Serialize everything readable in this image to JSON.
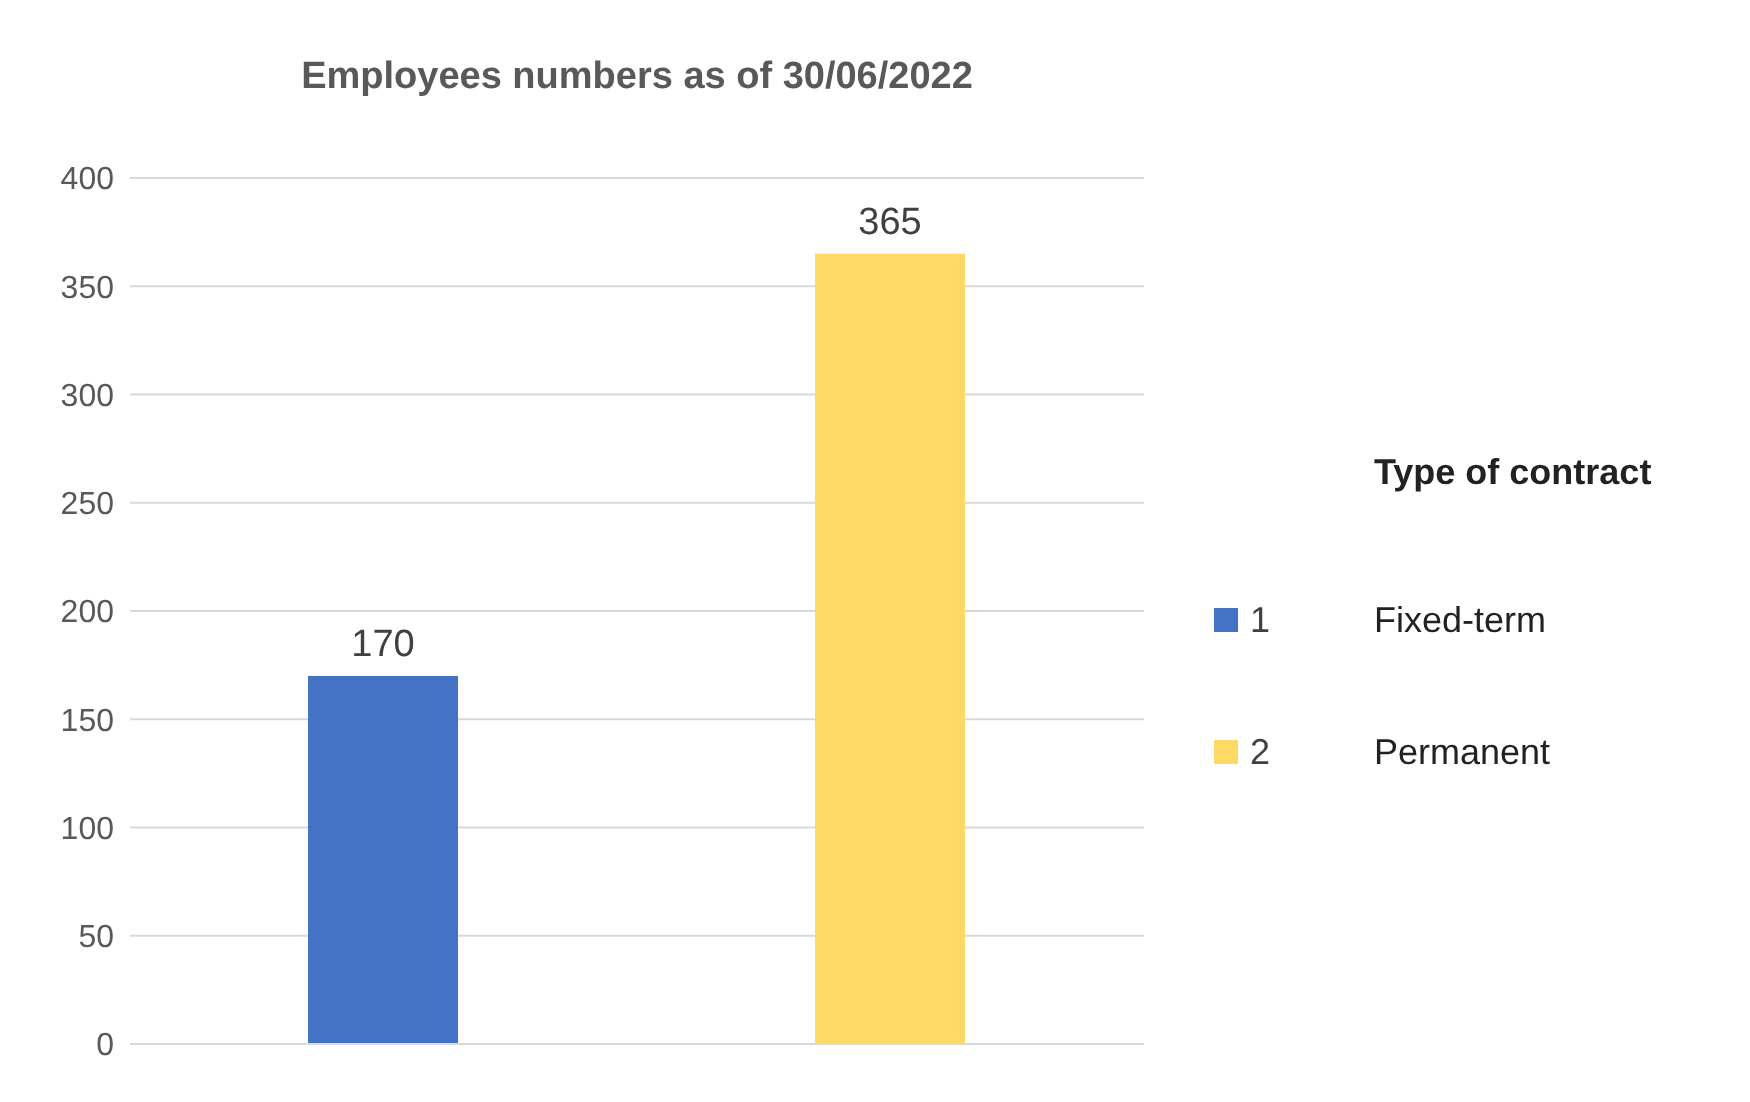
{
  "chart_data": {
    "type": "bar",
    "title": "Employees numbers as of 30/06/2022",
    "categories": [
      null,
      null
    ],
    "series": [
      {
        "name": "1",
        "color": "#4472c4",
        "values": [
          170,
          null
        ]
      },
      {
        "name": "2",
        "color": "#ffd966",
        "values": [
          null,
          365
        ]
      }
    ],
    "annotations": [
      "Fixed-term",
      "Permanent"
    ],
    "legend_title": "Type of contract",
    "legend": "right",
    "ylim": [
      0,
      400
    ],
    "yticks": [
      0,
      50,
      100,
      150,
      200,
      250,
      300,
      350,
      400
    ],
    "grid": "y",
    "data_labels": true,
    "tick_labels": "y"
  }
}
